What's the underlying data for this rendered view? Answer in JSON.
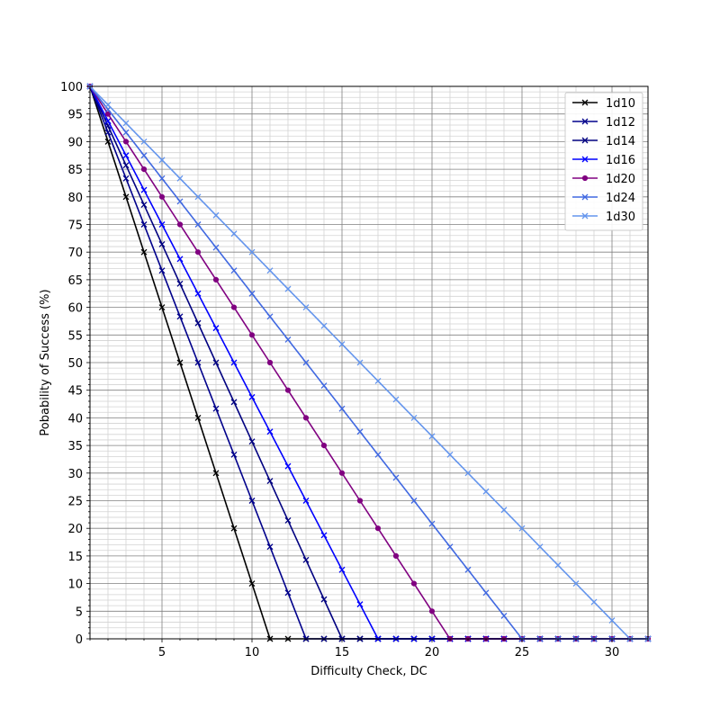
{
  "chart_data": {
    "type": "line",
    "title": "",
    "xlabel": "Difficulty Check, DC",
    "ylabel": "Pobability of Success (%)",
    "xlim": [
      1,
      32
    ],
    "ylim": [
      0,
      100
    ],
    "x_major_ticks": [
      5,
      10,
      15,
      20,
      25,
      30
    ],
    "y_major_ticks": [
      0,
      5,
      10,
      15,
      20,
      25,
      30,
      35,
      40,
      45,
      50,
      55,
      60,
      65,
      70,
      75,
      80,
      85,
      90,
      95,
      100
    ],
    "grid": "major and minor",
    "legend_position": "top-right",
    "x_start": 1,
    "x_end": 32,
    "series": [
      {
        "name": "1d10",
        "sides": 10,
        "color": "#000000",
        "marker": "x"
      },
      {
        "name": "1d12",
        "sides": 12,
        "color": "#00008b",
        "marker": "x"
      },
      {
        "name": "1d14",
        "sides": 14,
        "color": "#000080",
        "marker": "x"
      },
      {
        "name": "1d16",
        "sides": 16,
        "color": "#0000ff",
        "marker": "x"
      },
      {
        "name": "1d20",
        "sides": 20,
        "color": "#800080",
        "marker": "dot"
      },
      {
        "name": "1d24",
        "sides": 24,
        "color": "#4169e1",
        "marker": "x"
      },
      {
        "name": "1d30",
        "sides": 30,
        "color": "#6495ed",
        "marker": "x"
      }
    ]
  }
}
